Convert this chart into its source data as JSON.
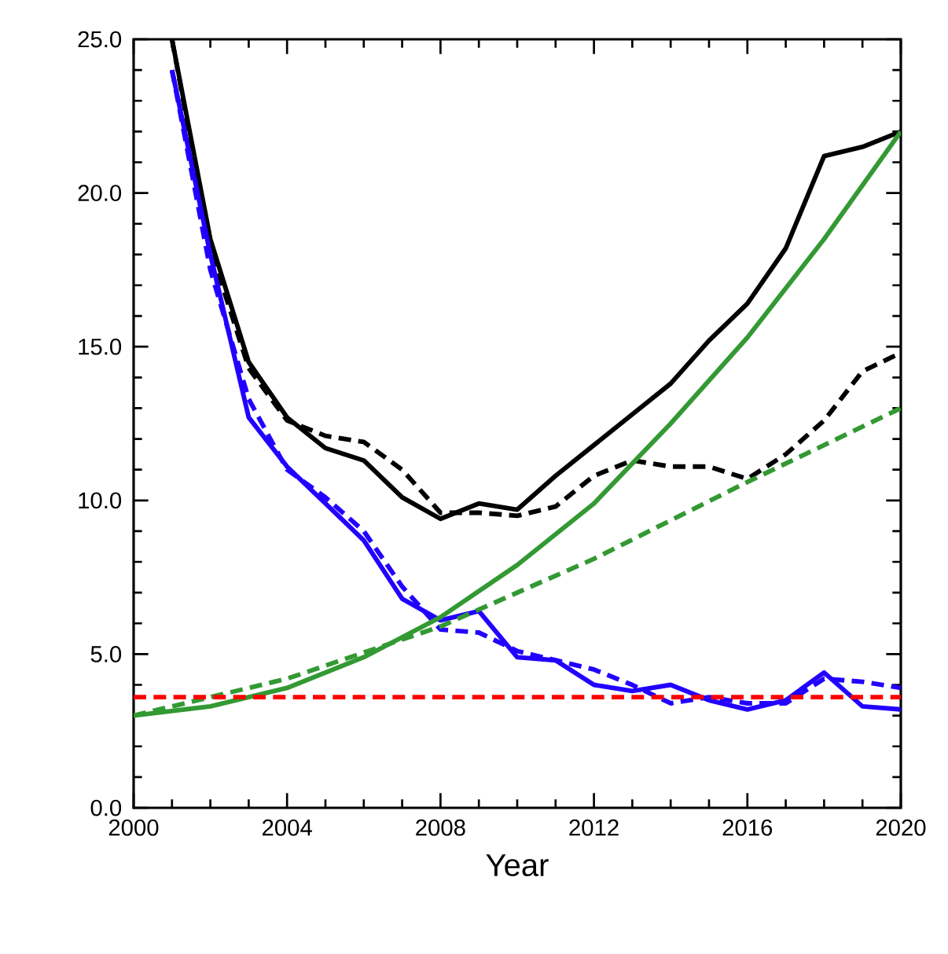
{
  "chart_data": {
    "type": "line",
    "xlabel": "Year",
    "xlim": [
      2000,
      2020
    ],
    "xticks": [
      2000,
      2004,
      2008,
      2012,
      2016,
      2020
    ],
    "ylim": [
      0,
      25
    ],
    "yticks": [
      {
        "value": 0,
        "label": "0.0"
      },
      {
        "value": 5,
        "label": "5.0"
      },
      {
        "value": 10,
        "label": "10.0"
      },
      {
        "value": 15,
        "label": "15.0"
      },
      {
        "value": 20,
        "label": "20.0"
      },
      {
        "value": 25,
        "label": "25.0"
      }
    ],
    "grid": false,
    "marker": "none",
    "series": [
      {
        "color": "#000000",
        "line_style": "solid",
        "x": [
          2001,
          2002,
          2003,
          2004,
          2005,
          2006,
          2007,
          2008,
          2009,
          2010,
          2011,
          2012,
          2013,
          2014,
          2015,
          2016,
          2017,
          2018,
          2019,
          2020
        ],
        "values": [
          25.0,
          18.5,
          14.5,
          12.7,
          11.7,
          11.3,
          10.1,
          9.4,
          9.9,
          9.7,
          10.8,
          11.8,
          12.8,
          13.8,
          15.2,
          16.4,
          18.2,
          21.2,
          21.5,
          22.0
        ]
      },
      {
        "color": "#000000",
        "line_style": "dashed",
        "x": [
          2001,
          2002,
          2003,
          2004,
          2005,
          2006,
          2007,
          2008,
          2009,
          2010,
          2011,
          2012,
          2013,
          2014,
          2015,
          2016,
          2017,
          2018,
          2019,
          2020
        ],
        "values": [
          25.0,
          18.2,
          14.3,
          12.6,
          12.1,
          11.9,
          11.0,
          9.6,
          9.6,
          9.5,
          9.8,
          10.8,
          11.3,
          11.1,
          11.1,
          10.7,
          11.5,
          12.6,
          14.2,
          14.8
        ]
      },
      {
        "color": "#2200ff",
        "line_style": "solid",
        "x": [
          2001,
          2002,
          2003,
          2004,
          2005,
          2006,
          2007,
          2008,
          2009,
          2010,
          2011,
          2012,
          2013,
          2014,
          2015,
          2016,
          2017,
          2018,
          2019,
          2020
        ],
        "values": [
          24.0,
          18.0,
          12.7,
          11.1,
          9.9,
          8.7,
          6.8,
          6.1,
          6.4,
          4.9,
          4.8,
          4.0,
          3.8,
          4.0,
          3.5,
          3.2,
          3.5,
          4.4,
          3.3,
          3.2
        ]
      },
      {
        "color": "#2200ff",
        "line_style": "dashed",
        "x": [
          2001,
          2002,
          2003,
          2004,
          2005,
          2006,
          2007,
          2008,
          2009,
          2010,
          2011,
          2012,
          2013,
          2014,
          2015,
          2016,
          2017,
          2018,
          2019,
          2020
        ],
        "values": [
          24.0,
          17.5,
          13.3,
          11.0,
          10.1,
          9.0,
          7.2,
          5.8,
          5.7,
          5.1,
          4.8,
          4.5,
          4.0,
          3.4,
          3.6,
          3.4,
          3.4,
          4.2,
          4.1,
          3.9
        ]
      },
      {
        "color": "#339933",
        "line_style": "solid",
        "x": [
          2000,
          2002,
          2004,
          2006,
          2008,
          2010,
          2012,
          2014,
          2016,
          2018,
          2020
        ],
        "values": [
          3.0,
          3.3,
          3.9,
          4.9,
          6.2,
          7.9,
          9.9,
          12.5,
          15.3,
          18.5,
          22.0
        ]
      },
      {
        "color": "#339933",
        "line_style": "dashed",
        "x": [
          2000,
          2004,
          2008,
          2012,
          2016,
          2020
        ],
        "values": [
          3.0,
          4.2,
          5.9,
          8.1,
          10.6,
          13.0
        ]
      }
    ],
    "ref_lines": [
      {
        "axis": "y",
        "value": 3.6,
        "color": "#ff0000",
        "line_style": "dashed"
      }
    ]
  }
}
